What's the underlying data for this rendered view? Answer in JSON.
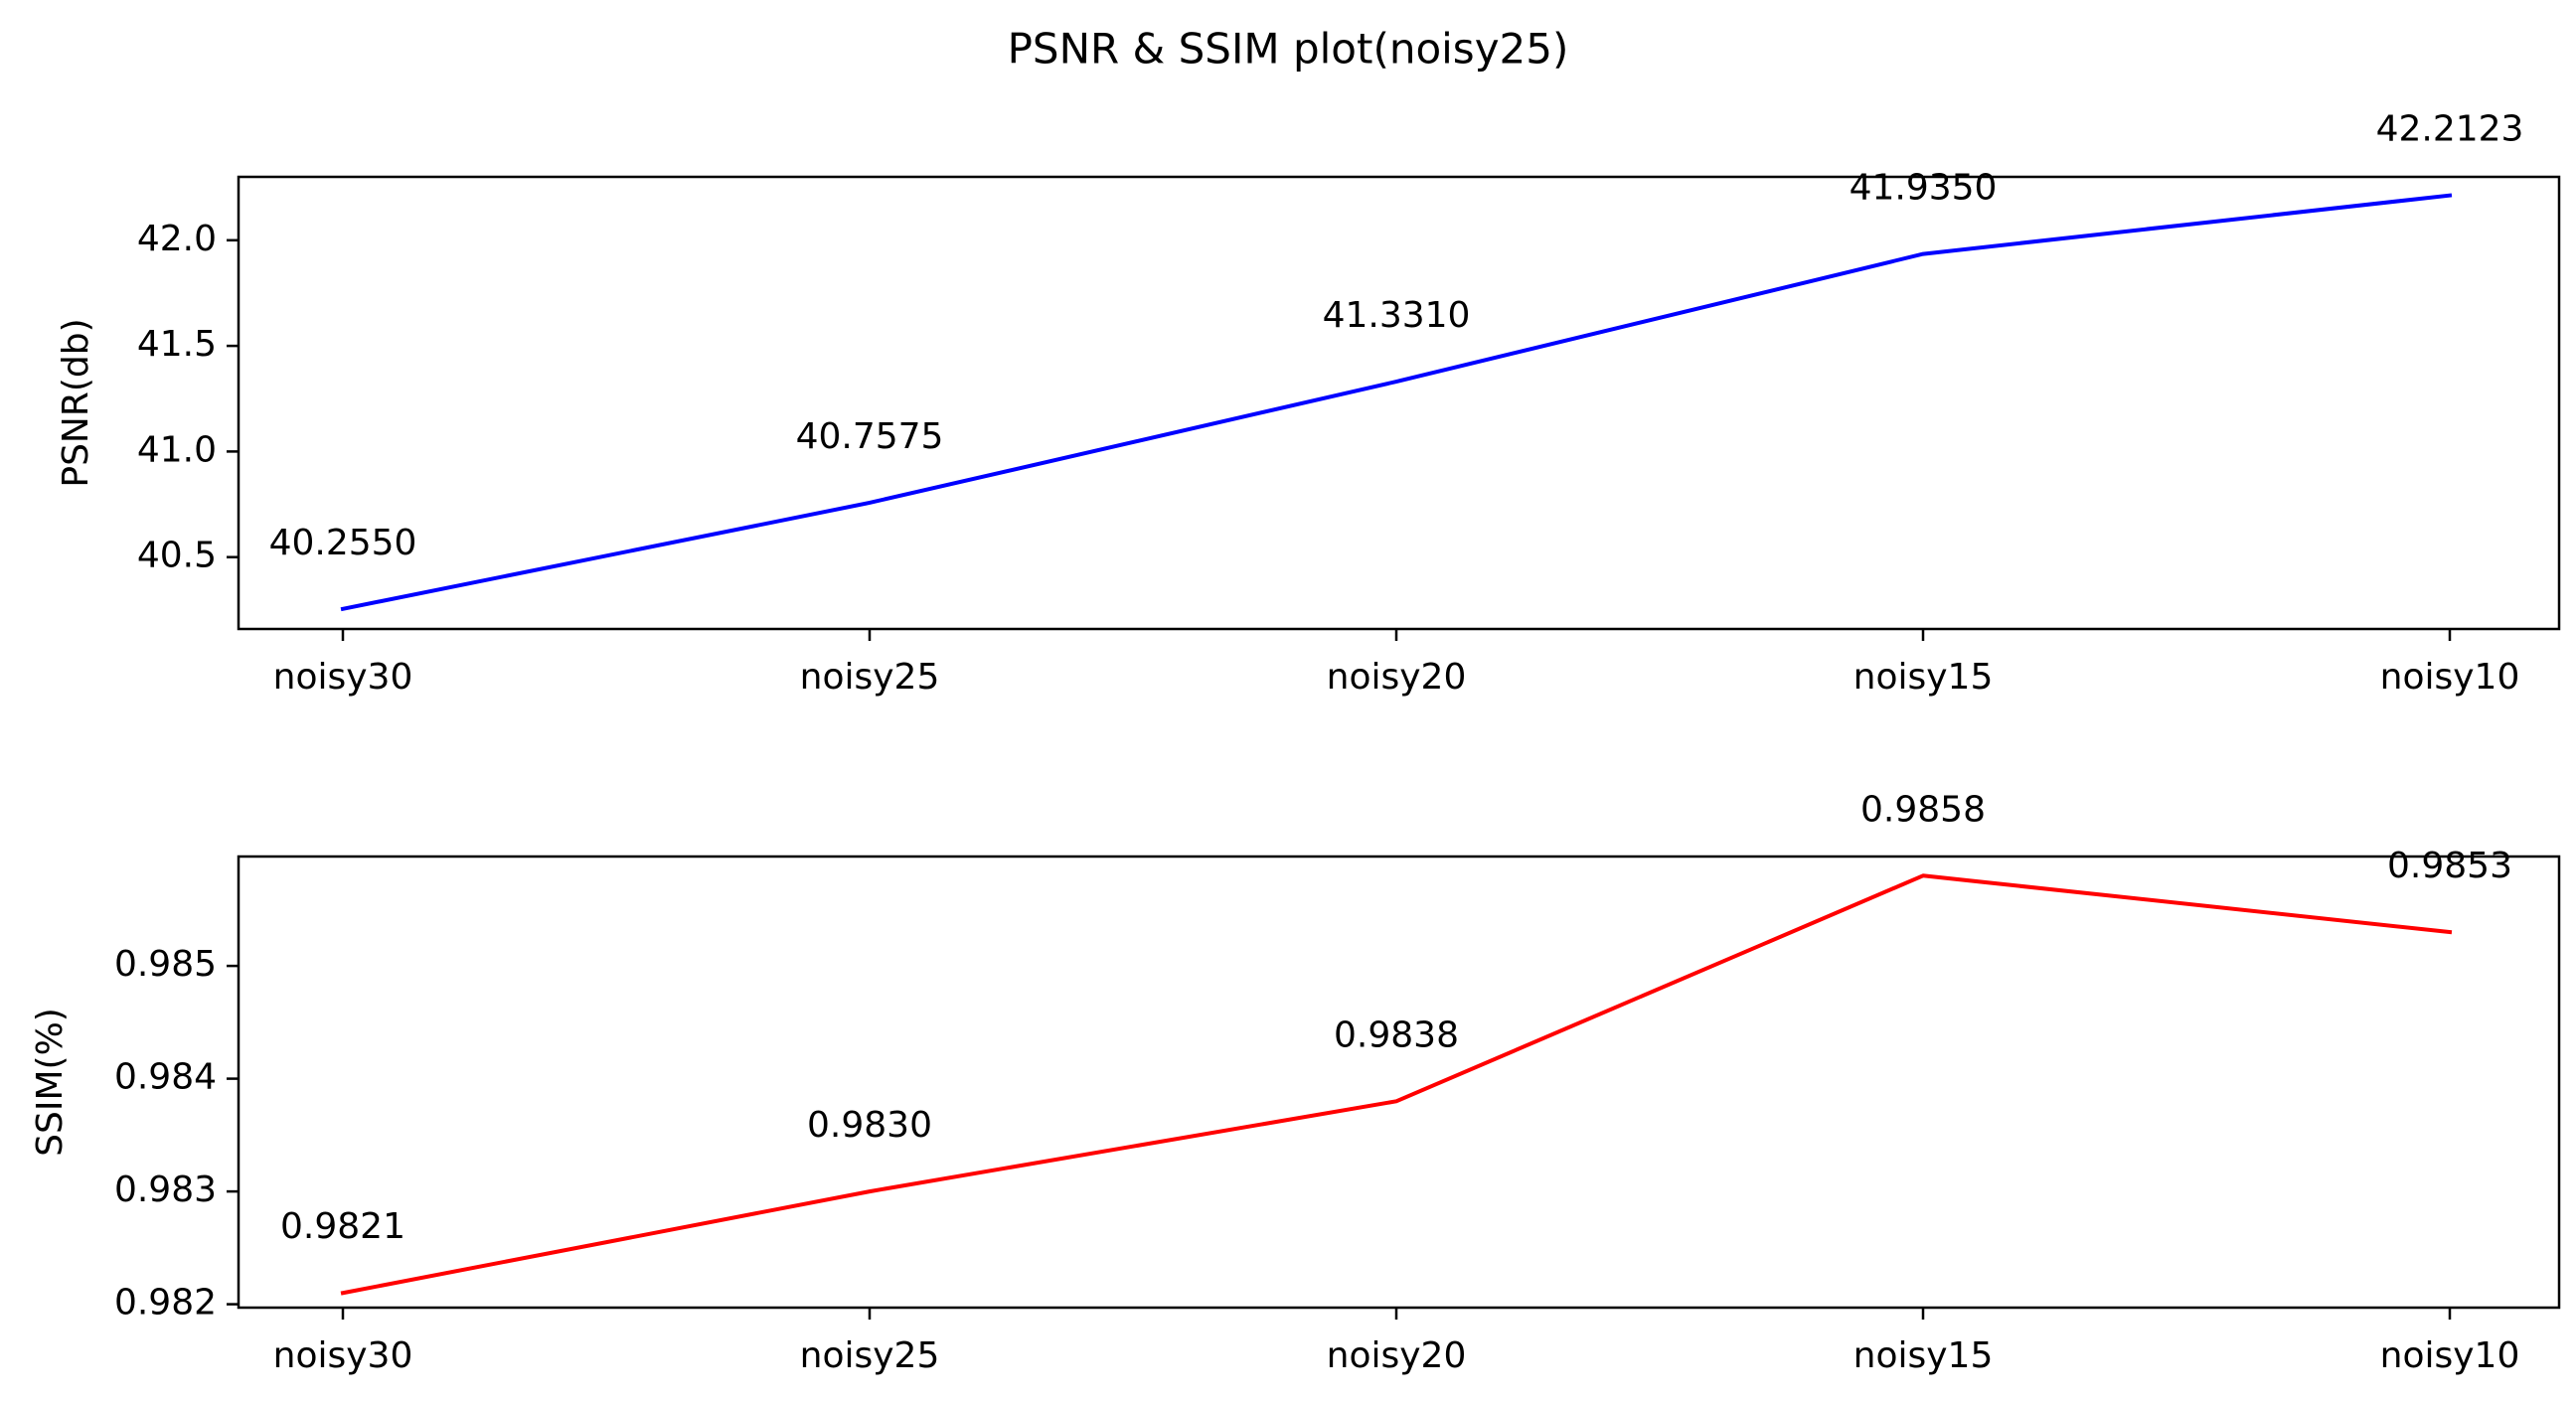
{
  "chart_data": {
    "title": "PSNR & SSIM plot(noisy25)",
    "categories": [
      "noisy30",
      "noisy25",
      "noisy20",
      "noisy15",
      "noisy10"
    ],
    "panels": [
      {
        "type": "line",
        "ylabel": "PSNR(db)",
        "ylim": [
          40.16,
          42.3
        ],
        "yticks": [
          40.5,
          41.0,
          41.5,
          42.0
        ],
        "ytick_labels": [
          "40.5",
          "41.0",
          "41.5",
          "42.0"
        ],
        "series": [
          {
            "values": [
              40.255,
              40.7575,
              41.331,
              41.935,
              42.2123
            ],
            "labels": [
              "40.2550",
              "40.7575",
              "41.3310",
              "41.9350",
              "42.2123"
            ],
            "color": "#0000ff"
          }
        ]
      },
      {
        "type": "line",
        "ylabel": "SSIM(%)",
        "ylim": [
          0.98197,
          0.98597
        ],
        "yticks": [
          0.982,
          0.983,
          0.984,
          0.985
        ],
        "ytick_labels": [
          "0.982",
          "0.983",
          "0.984",
          "0.985"
        ],
        "series": [
          {
            "values": [
              0.9821,
              0.983,
              0.9838,
              0.9858,
              0.9853
            ],
            "labels": [
              "0.9821",
              "0.9830",
              "0.9838",
              "0.9858",
              "0.9853"
            ],
            "color": "#ff0000"
          }
        ]
      }
    ]
  }
}
